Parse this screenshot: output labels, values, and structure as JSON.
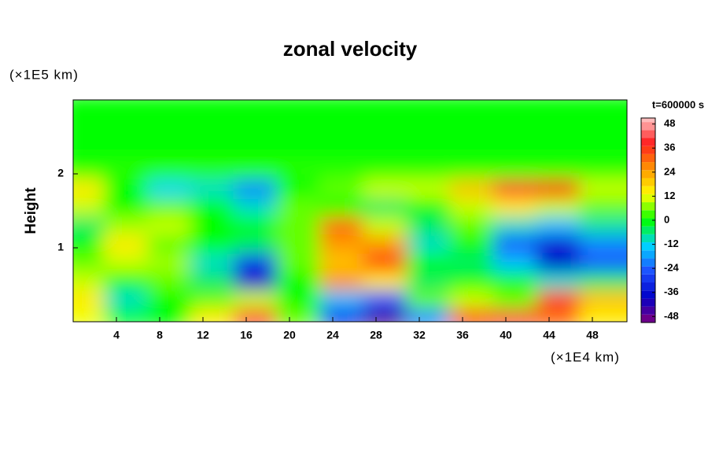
{
  "chart_data": {
    "type": "heatmap",
    "title": "zonal velocity",
    "y_unit_label": "(×1E5 km)",
    "x_unit_label": "(×1E4 km)",
    "y_label": "Height",
    "colorbar_title": "t=600000 s",
    "xlim": [
      0,
      51.2
    ],
    "ylim": [
      0,
      3
    ],
    "xticks": [
      4,
      8,
      12,
      16,
      20,
      24,
      28,
      32,
      36,
      40,
      44,
      48
    ],
    "yticks": [
      1,
      2
    ],
    "clim": [
      -51,
      51
    ],
    "cticks": [
      -48,
      -36,
      -24,
      -12,
      0,
      12,
      24,
      36,
      48
    ],
    "colorscale": [
      "#800080",
      "#0000c8",
      "#1e50ff",
      "#00d2ff",
      "#00ff00",
      "#ffff00",
      "#ff9600",
      "#ff1e1e",
      "#ffc8c8"
    ],
    "x": [
      2,
      6,
      10,
      14,
      18,
      22,
      26,
      30,
      34,
      38,
      42,
      46,
      50
    ],
    "y": [
      0.125,
      0.375,
      0.625,
      0.875,
      1.125,
      1.375,
      1.625,
      1.875,
      2.125,
      2.375,
      2.625,
      2.875
    ],
    "z": [
      [
        12,
        0,
        0,
        15,
        40,
        5,
        -30,
        -45,
        -20,
        35,
        40,
        30,
        15
      ],
      [
        15,
        -10,
        0,
        5,
        10,
        0,
        -15,
        -25,
        5,
        10,
        5,
        35,
        20
      ],
      [
        10,
        0,
        5,
        -5,
        -38,
        0,
        25,
        15,
        -5,
        0,
        0,
        -10,
        -5
      ],
      [
        5,
        10,
        8,
        -10,
        -30,
        5,
        20,
        35,
        0,
        -5,
        -15,
        -38,
        -25
      ],
      [
        0,
        15,
        5,
        0,
        -5,
        5,
        25,
        25,
        -10,
        0,
        -25,
        -35,
        -20
      ],
      [
        -5,
        8,
        10,
        0,
        0,
        5,
        30,
        10,
        -5,
        5,
        -10,
        -15,
        -8
      ],
      [
        10,
        0,
        5,
        0,
        -10,
        5,
        0,
        -5,
        0,
        10,
        15,
        10,
        5
      ],
      [
        15,
        0,
        -12,
        -10,
        -20,
        0,
        5,
        10,
        10,
        20,
        40,
        38,
        10
      ],
      [
        2,
        2,
        2,
        2,
        2,
        2,
        2,
        2,
        2,
        2,
        2,
        2,
        2
      ],
      [
        0,
        0,
        0,
        0,
        0,
        0,
        0,
        0,
        0,
        0,
        0,
        0,
        0
      ],
      [
        0,
        0,
        0,
        0,
        0,
        0,
        0,
        0,
        0,
        0,
        0,
        0,
        0
      ],
      [
        0,
        0,
        0,
        0,
        0,
        0,
        0,
        0,
        0,
        0,
        0,
        0,
        0
      ]
    ]
  }
}
